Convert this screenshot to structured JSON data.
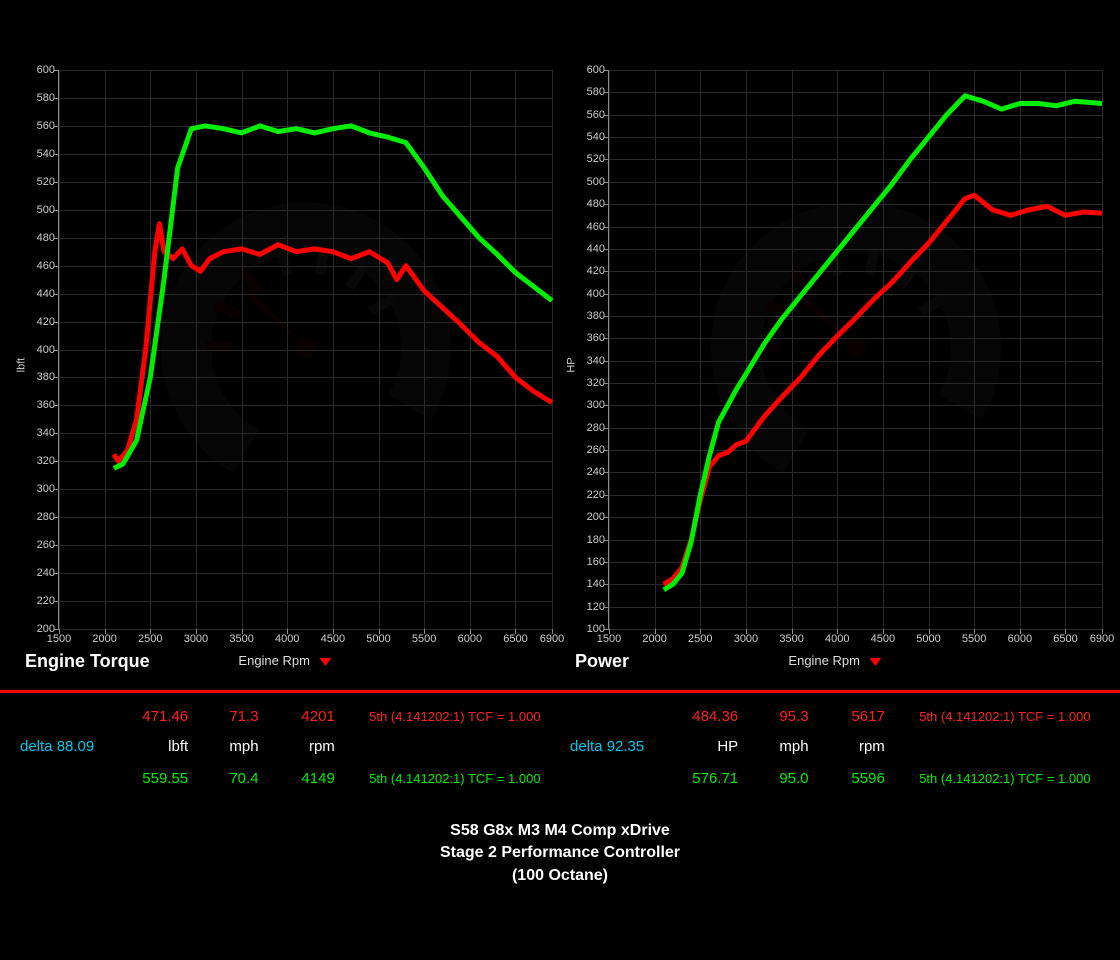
{
  "background_color": "#000000",
  "grid_color": "#2a2a2a",
  "axis_color": "#888888",
  "series_colors": {
    "stock": "#ff0000",
    "tuned": "#00ee00"
  },
  "line_width": 2.5,
  "xlim": [
    1500,
    6900
  ],
  "x_ticks": [
    1500,
    2000,
    2500,
    3000,
    3500,
    4000,
    4500,
    5000,
    5500,
    6000,
    6500,
    6900
  ],
  "x_axis_label": "Engine Rpm",
  "charts": [
    {
      "title": "Engine Torque",
      "y_axis_label": "lbft",
      "ylim": [
        200,
        600
      ],
      "y_tick_step": 20,
      "series": {
        "stock": [
          [
            2100,
            325
          ],
          [
            2150,
            320
          ],
          [
            2250,
            328
          ],
          [
            2350,
            350
          ],
          [
            2450,
            400
          ],
          [
            2550,
            470
          ],
          [
            2600,
            490
          ],
          [
            2650,
            470
          ],
          [
            2750,
            465
          ],
          [
            2850,
            472
          ],
          [
            2950,
            460
          ],
          [
            3050,
            456
          ],
          [
            3150,
            465
          ],
          [
            3300,
            470
          ],
          [
            3500,
            472
          ],
          [
            3700,
            468
          ],
          [
            3900,
            475
          ],
          [
            4100,
            470
          ],
          [
            4300,
            472
          ],
          [
            4500,
            470
          ],
          [
            4700,
            465
          ],
          [
            4900,
            470
          ],
          [
            5100,
            462
          ],
          [
            5200,
            450
          ],
          [
            5300,
            460
          ],
          [
            5500,
            442
          ],
          [
            5700,
            430
          ],
          [
            5900,
            418
          ],
          [
            6100,
            405
          ],
          [
            6300,
            395
          ],
          [
            6500,
            380
          ],
          [
            6700,
            370
          ],
          [
            6900,
            362
          ]
        ],
        "tuned": [
          [
            2100,
            315
          ],
          [
            2200,
            318
          ],
          [
            2350,
            335
          ],
          [
            2500,
            380
          ],
          [
            2650,
            450
          ],
          [
            2800,
            530
          ],
          [
            2950,
            558
          ],
          [
            3100,
            560
          ],
          [
            3300,
            558
          ],
          [
            3500,
            555
          ],
          [
            3700,
            560
          ],
          [
            3900,
            556
          ],
          [
            4100,
            558
          ],
          [
            4300,
            555
          ],
          [
            4500,
            558
          ],
          [
            4700,
            560
          ],
          [
            4900,
            555
          ],
          [
            5100,
            552
          ],
          [
            5300,
            548
          ],
          [
            5500,
            530
          ],
          [
            5700,
            510
          ],
          [
            5900,
            495
          ],
          [
            6100,
            480
          ],
          [
            6300,
            468
          ],
          [
            6500,
            455
          ],
          [
            6700,
            445
          ],
          [
            6900,
            435
          ]
        ]
      }
    },
    {
      "title": "Power",
      "y_axis_label": "HP",
      "ylim": [
        100,
        600
      ],
      "y_tick_step": 20,
      "series": {
        "stock": [
          [
            2100,
            140
          ],
          [
            2200,
            145
          ],
          [
            2300,
            155
          ],
          [
            2400,
            180
          ],
          [
            2500,
            215
          ],
          [
            2600,
            245
          ],
          [
            2700,
            255
          ],
          [
            2800,
            258
          ],
          [
            2900,
            265
          ],
          [
            3000,
            268
          ],
          [
            3200,
            290
          ],
          [
            3400,
            308
          ],
          [
            3600,
            325
          ],
          [
            3800,
            345
          ],
          [
            4000,
            362
          ],
          [
            4200,
            378
          ],
          [
            4400,
            395
          ],
          [
            4600,
            410
          ],
          [
            4800,
            428
          ],
          [
            5000,
            445
          ],
          [
            5200,
            465
          ],
          [
            5400,
            485
          ],
          [
            5500,
            488
          ],
          [
            5700,
            475
          ],
          [
            5900,
            470
          ],
          [
            6100,
            475
          ],
          [
            6300,
            478
          ],
          [
            6500,
            470
          ],
          [
            6700,
            473
          ],
          [
            6900,
            472
          ]
        ],
        "tuned": [
          [
            2100,
            135
          ],
          [
            2200,
            140
          ],
          [
            2300,
            150
          ],
          [
            2400,
            178
          ],
          [
            2500,
            220
          ],
          [
            2600,
            255
          ],
          [
            2700,
            285
          ],
          [
            2800,
            300
          ],
          [
            2900,
            315
          ],
          [
            3000,
            328
          ],
          [
            3200,
            355
          ],
          [
            3400,
            378
          ],
          [
            3600,
            398
          ],
          [
            3800,
            418
          ],
          [
            4000,
            438
          ],
          [
            4200,
            458
          ],
          [
            4400,
            478
          ],
          [
            4600,
            498
          ],
          [
            4800,
            520
          ],
          [
            5000,
            540
          ],
          [
            5200,
            560
          ],
          [
            5400,
            577
          ],
          [
            5600,
            572
          ],
          [
            5800,
            565
          ],
          [
            6000,
            570
          ],
          [
            6200,
            570
          ],
          [
            6400,
            568
          ],
          [
            6600,
            572
          ],
          [
            6900,
            570
          ]
        ]
      }
    }
  ],
  "data_panels": [
    {
      "delta_label": "delta",
      "delta_value": "88.09",
      "unit": "lbft",
      "mph_label": "mph",
      "rpm_label": "rpm",
      "stock": {
        "value": "471.46",
        "mph": "71.3",
        "rpm": "4201",
        "gear": "5th (4.141202:1) TCF = 1.000"
      },
      "tuned": {
        "value": "559.55",
        "mph": "70.4",
        "rpm": "4149",
        "gear": "5th (4.141202:1) TCF = 1.000"
      }
    },
    {
      "delta_label": "delta",
      "delta_value": "92.35",
      "unit": "HP",
      "mph_label": "mph",
      "rpm_label": "rpm",
      "stock": {
        "value": "484.36",
        "mph": "95.3",
        "rpm": "5617",
        "gear": "5th (4.141202:1) TCF = 1.000"
      },
      "tuned": {
        "value": "576.71",
        "mph": "95.0",
        "rpm": "5596",
        "gear": "5th (4.141202:1) TCF = 1.000"
      }
    }
  ],
  "title_lines": [
    "S58 G8x M3 M4 Comp xDrive",
    "Stage 2 Performance Controller",
    "(100 Octane)"
  ]
}
